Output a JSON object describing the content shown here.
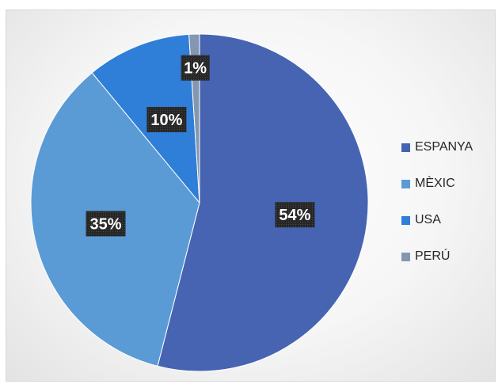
{
  "chart_data": {
    "type": "pie",
    "categories": [
      "ESPANYA",
      "MÈXIC",
      "USA",
      "PERÚ"
    ],
    "values": [
      54,
      35,
      10,
      1
    ],
    "data_labels": [
      "54%",
      "35%",
      "10%",
      "1%"
    ],
    "colors": [
      "#4664b1",
      "#5b9bd5",
      "#2f7ed8",
      "#8497b0"
    ],
    "legend_position": "right",
    "start_angle_deg": 0,
    "direction": "clockwise"
  }
}
